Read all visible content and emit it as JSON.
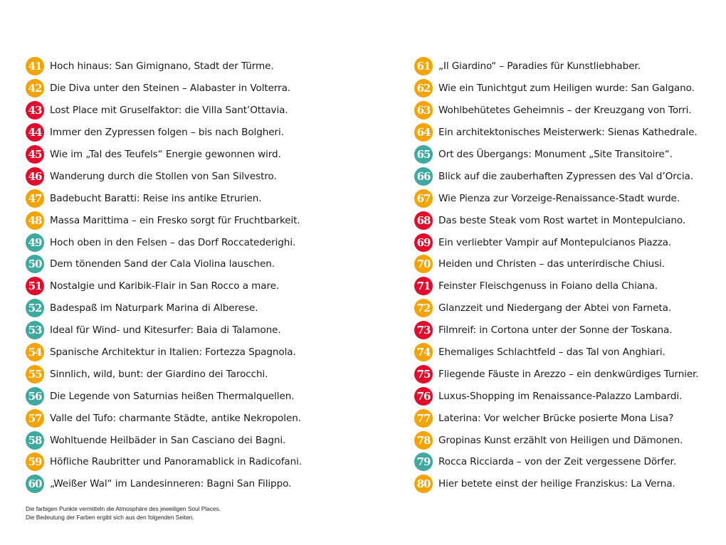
{
  "colors": {
    "orange": "#f5a300",
    "red": "#e30b2c",
    "teal": "#3ea99f"
  },
  "left": [
    {
      "num": "41",
      "color": "orange",
      "text": "Hoch hinaus: San Gimignano, Stadt der Türme."
    },
    {
      "num": "42",
      "color": "orange",
      "text": "Die Diva unter den Steinen – Alabaster in Volterra."
    },
    {
      "num": "43",
      "color": "red",
      "text": "Lost Place mit Gruselfaktor: die Villa Sant’Ottavia."
    },
    {
      "num": "44",
      "color": "red",
      "text": "Immer den Zypressen folgen – bis nach Bolgheri."
    },
    {
      "num": "45",
      "color": "red",
      "text": "Wie im „Tal des Teufels“ Energie gewonnen wird."
    },
    {
      "num": "46",
      "color": "red",
      "text": "Wanderung durch die Stollen von San Silvestro."
    },
    {
      "num": "47",
      "color": "orange",
      "text": "Badebucht Baratti: Reise ins antike Etrurien."
    },
    {
      "num": "48",
      "color": "orange",
      "text": "Massa Marittima – ein Fresko sorgt für Fruchtbarkeit."
    },
    {
      "num": "49",
      "color": "teal",
      "text": "Hoch oben in den Felsen – das Dorf Roccatederighi."
    },
    {
      "num": "50",
      "color": "teal",
      "text": "Dem tönenden Sand der Cala Violina lauschen."
    },
    {
      "num": "51",
      "color": "red",
      "text": "Nostalgie und Karibik-Flair in San Rocco a mare."
    },
    {
      "num": "52",
      "color": "teal",
      "text": "Badespaß im Naturpark Marina di Alberese."
    },
    {
      "num": "53",
      "color": "teal",
      "text": "Ideal für Wind- und Kitesurfer: Baia di Talamone."
    },
    {
      "num": "54",
      "color": "orange",
      "text": "Spanische Architektur in Italien: Fortezza Spagnola."
    },
    {
      "num": "55",
      "color": "orange",
      "text": "Sinnlich, wild, bunt: der Giardino dei Tarocchi."
    },
    {
      "num": "56",
      "color": "teal",
      "text": "Die Legende von Saturnias heißen Thermalquellen."
    },
    {
      "num": "57",
      "color": "orange",
      "text": "Valle del Tufo: charmante Städte, antike Nekropolen."
    },
    {
      "num": "58",
      "color": "teal",
      "text": "Wohltuende Heilbäder in San Casciano dei Bagni."
    },
    {
      "num": "59",
      "color": "orange",
      "text": "Höfliche Raubritter und Panoramablick in Radicofani."
    },
    {
      "num": "60",
      "color": "teal",
      "text": "„Weißer Wal“ im Landesinneren: Bagni San Filippo."
    }
  ],
  "right": [
    {
      "num": "61",
      "color": "orange",
      "text": "„Il Giardino“ – Paradies für Kunstliebhaber."
    },
    {
      "num": "62",
      "color": "orange",
      "text": "Wie ein Tunichtgut zum Heiligen wurde: San Galgano."
    },
    {
      "num": "63",
      "color": "orange",
      "text": "Wohlbehütetes Geheimnis – der Kreuzgang von Torri."
    },
    {
      "num": "64",
      "color": "orange",
      "text": "Ein architektonisches Meisterwerk: Sienas Kathedrale."
    },
    {
      "num": "65",
      "color": "teal",
      "text": "Ort des Übergangs: Monument „Site Transitoire“."
    },
    {
      "num": "66",
      "color": "teal",
      "text": "Blick auf die zauberhaften Zypressen des Val d’Orcia."
    },
    {
      "num": "67",
      "color": "orange",
      "text": "Wie Pienza zur Vorzeige-Renaissance-Stadt wurde."
    },
    {
      "num": "68",
      "color": "red",
      "text": "Das beste Steak vom Rost wartet in Montepulciano."
    },
    {
      "num": "69",
      "color": "red",
      "text": "Ein verliebter Vampir auf Montepulcianos Piazza."
    },
    {
      "num": "70",
      "color": "orange",
      "text": "Heiden und Christen – das unterirdische Chiusi."
    },
    {
      "num": "71",
      "color": "red",
      "text": "Feinster Fleischgenuss in Foiano della Chiana."
    },
    {
      "num": "72",
      "color": "orange",
      "text": "Glanzzeit und Niedergang der Abtei von Farneta."
    },
    {
      "num": "73",
      "color": "red",
      "text": "Filmreif: in Cortona unter der Sonne der Toskana."
    },
    {
      "num": "74",
      "color": "orange",
      "text": "Ehemaliges Schlachtfeld – das Tal von Anghiari."
    },
    {
      "num": "75",
      "color": "red",
      "text": "Fliegende Fäuste in Arezzo – ein denkwürdiges Turnier."
    },
    {
      "num": "76",
      "color": "red",
      "text": "Luxus-Shopping im Renaissance-Palazzo Lambardi."
    },
    {
      "num": "77",
      "color": "orange",
      "text": "Laterina: Vor welcher Brücke posierte Mona Lisa?"
    },
    {
      "num": "78",
      "color": "orange",
      "text": "Gropinas Kunst erzählt von Heiligen und Dämonen."
    },
    {
      "num": "79",
      "color": "teal",
      "text": "Rocca Ricciarda – von der Zeit vergessene Dörfer."
    },
    {
      "num": "80",
      "color": "orange",
      "text": "Hier betete einst der heilige Franziskus: La Verna."
    }
  ],
  "footnote": {
    "line1": "Die farbigen Punkte vermitteln die Atmosphäre des jeweiligen Soul Places.",
    "line2": "Die Bedeutung der Farben ergibt sich aus den folgenden Seiten."
  }
}
